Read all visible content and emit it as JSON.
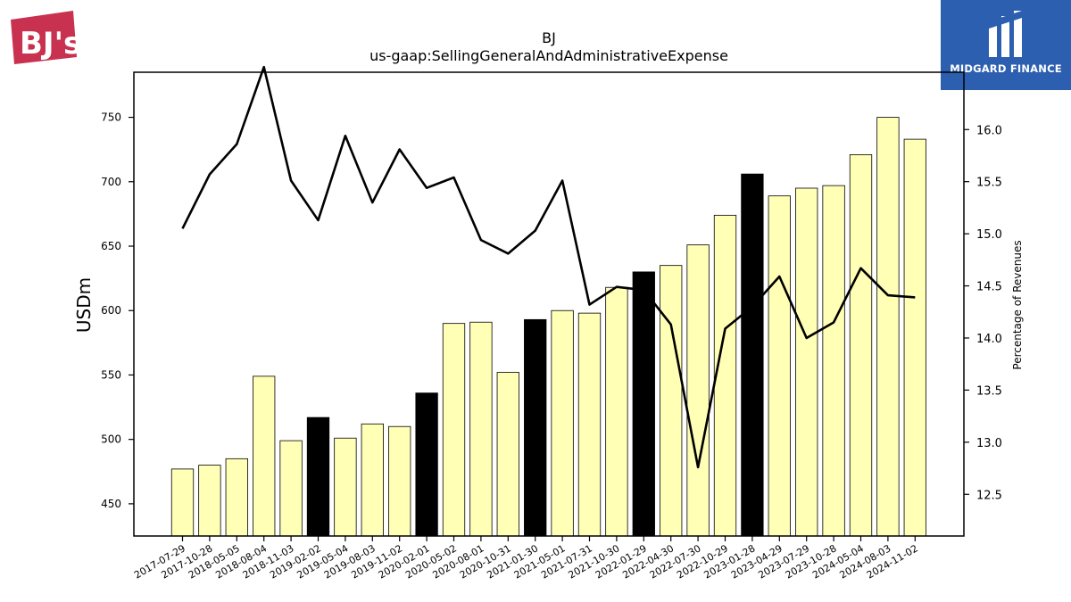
{
  "brand": {
    "left_logo_text": "BJ's",
    "right_logo_text": "MIDGARD FINANCE"
  },
  "chart_data": {
    "type": "bar",
    "title": "BJ",
    "subtitle": "us-gaap:SellingGeneralAndAdministrativeExpense",
    "ylabel": "USDm",
    "y2label": "Percentage of Revenues",
    "ylim": [
      425,
      785
    ],
    "y2lim": [
      12.1,
      16.55
    ],
    "yticks": [
      450,
      500,
      550,
      600,
      650,
      700,
      750
    ],
    "y2ticks": [
      12.5,
      13.0,
      13.5,
      14.0,
      14.5,
      15.0,
      15.5,
      16.0
    ],
    "categories": [
      "2017-07-29",
      "2017-10-28",
      "2018-05-05",
      "2018-08-04",
      "2018-11-03",
      "2019-02-02",
      "2019-05-04",
      "2019-08-03",
      "2019-11-02",
      "2020-02-01",
      "2020-05-02",
      "2020-08-01",
      "2020-10-31",
      "2021-01-30",
      "2021-05-01",
      "2021-07-31",
      "2021-10-30",
      "2022-01-29",
      "2022-04-30",
      "2022-07-30",
      "2022-10-29",
      "2023-01-28",
      "2023-04-29",
      "2023-07-29",
      "2023-10-28",
      "2024-05-04",
      "2024-08-03",
      "2024-11-02"
    ],
    "series": [
      {
        "type": "bar",
        "values": [
          477,
          480,
          485,
          549,
          499,
          517,
          501,
          512,
          510,
          536,
          590,
          591,
          552,
          593,
          600,
          598,
          618,
          630,
          635,
          651,
          674,
          706,
          689,
          695,
          697,
          721,
          750,
          733
        ],
        "highlight": [
          false,
          false,
          false,
          false,
          false,
          true,
          false,
          false,
          false,
          true,
          false,
          false,
          false,
          true,
          false,
          false,
          false,
          true,
          false,
          false,
          false,
          true,
          false,
          false,
          false,
          false,
          false,
          false
        ]
      },
      {
        "type": "line",
        "axis": "right",
        "values": [
          15.05,
          15.57,
          15.86,
          16.6,
          15.51,
          15.13,
          15.94,
          15.3,
          15.81,
          15.44,
          15.54,
          14.94,
          14.81,
          15.03,
          15.51,
          14.32,
          14.49,
          14.46,
          14.13,
          12.76,
          14.09,
          14.3,
          14.59,
          14.0,
          14.15,
          14.67,
          14.41,
          14.39
        ]
      }
    ],
    "colors": {
      "bar": "#ffffb5",
      "bar_highlight": "#000000",
      "bar_edge": "#000000",
      "line": "#000000"
    },
    "grid": false,
    "legend": "none"
  }
}
